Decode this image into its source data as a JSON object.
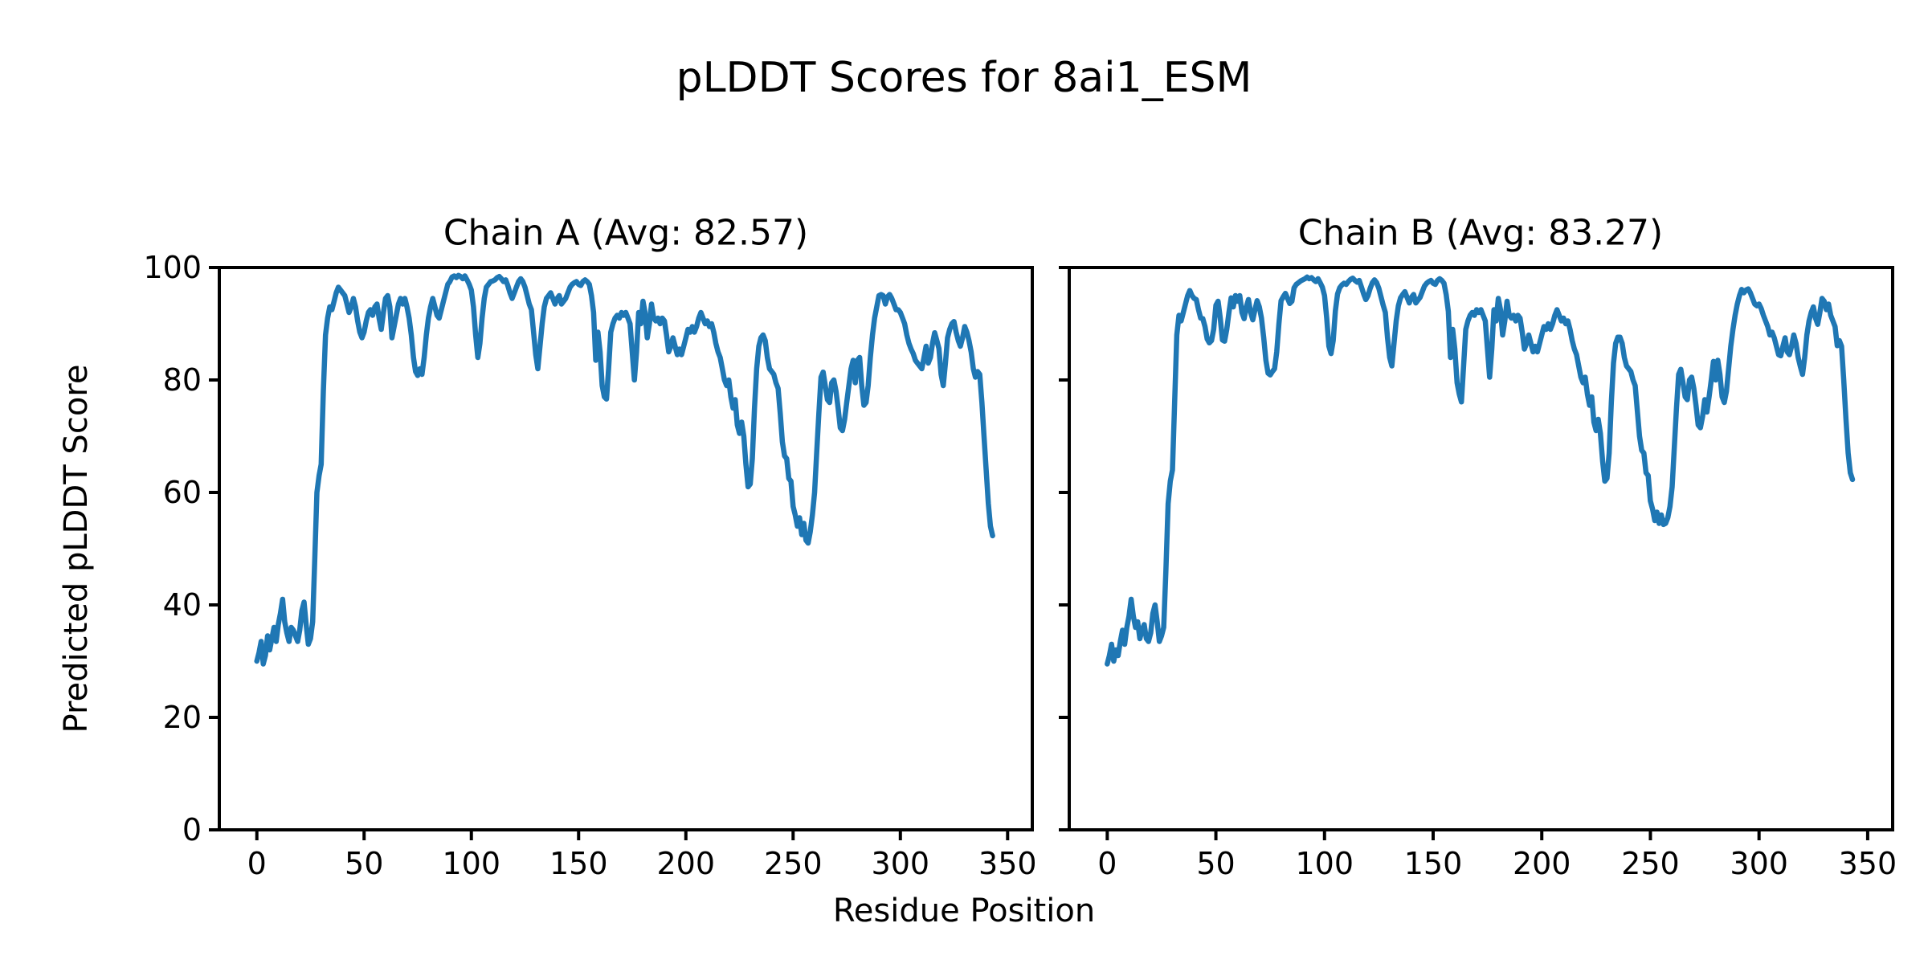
{
  "figure": {
    "title": "pLDDT Scores for 8ai1_ESM",
    "xlabel": "Residue Position",
    "ylabel": "Predicted pLDDT Score",
    "background_color": "#ffffff",
    "text_color": "#000000",
    "line_color": "#1f77b4"
  },
  "chart_data": [
    {
      "type": "line",
      "title": "Chain A (Avg: 82.57)",
      "series_name": "Chain A pLDDT",
      "average": 82.57,
      "xlabel": "Residue Position",
      "ylabel": "Predicted pLDDT Score",
      "xlim": [
        -17.5,
        361.5
      ],
      "ylim": [
        0,
        100
      ],
      "x_ticks": [
        0,
        50,
        100,
        150,
        200,
        250,
        300,
        350
      ],
      "y_ticks": [
        0,
        20,
        40,
        60,
        80,
        100
      ],
      "grid": false,
      "x_start": 0,
      "values": [
        30,
        31.5,
        33.5,
        29.5,
        31,
        34.5,
        32,
        34,
        36,
        33.5,
        36.5,
        38.5,
        41,
        37,
        35,
        33.5,
        36,
        35.5,
        34.5,
        33.5,
        35.5,
        39,
        40.5,
        36.5,
        33,
        34,
        37,
        48,
        60,
        63,
        65,
        78,
        88,
        91,
        93,
        92.5,
        94,
        95.5,
        96.5,
        96,
        95.5,
        95,
        93.5,
        92,
        93,
        94.5,
        93,
        90.5,
        88.5,
        87.5,
        88.5,
        90.5,
        92,
        92.5,
        91.5,
        93,
        93.5,
        91,
        89,
        92,
        94.5,
        95,
        93,
        87.5,
        89.5,
        91.5,
        93.5,
        94.5,
        93.5,
        94.5,
        93,
        91,
        88,
        84,
        81.5,
        80.8,
        82,
        81,
        84,
        88,
        91,
        93,
        94.5,
        93,
        91.5,
        91,
        92.5,
        94,
        95.5,
        97,
        97.5,
        98.3,
        98.5,
        98.2,
        98.6,
        98.4,
        98,
        98.5,
        97.8,
        97,
        96,
        93,
        88,
        84,
        86.5,
        91,
        94.5,
        96.5,
        97,
        97.5,
        97.6,
        97.8,
        98.2,
        98.4,
        98,
        97.5,
        97.8,
        96.8,
        95.5,
        94.5,
        95.5,
        96.5,
        97.5,
        98,
        97.5,
        96.5,
        95,
        93.5,
        92.5,
        88.5,
        84.5,
        82,
        86,
        90,
        93,
        94.5,
        95,
        95.5,
        94.5,
        93.5,
        94.5,
        95,
        93.5,
        94,
        94.5,
        95.5,
        96.5,
        97,
        97.3,
        97.5,
        97,
        96.8,
        97.5,
        97.8,
        97.5,
        97,
        95,
        92,
        83.5,
        88.5,
        85,
        79,
        77,
        76.6,
        82,
        88.5,
        90,
        91,
        91.5,
        91,
        92,
        91.5,
        92,
        91,
        90,
        85,
        80,
        85,
        92,
        90,
        94,
        92,
        87.5,
        90,
        93.5,
        91,
        90.5,
        91,
        90,
        91,
        90.5,
        88,
        85,
        86,
        87.5,
        86,
        84.5,
        85.5,
        84.5,
        86,
        87.5,
        89,
        88.5,
        89.5,
        88.5,
        89.5,
        91,
        92,
        91,
        90,
        90.5,
        89.5,
        90,
        88.5,
        86.5,
        85,
        84,
        82,
        80,
        79,
        80,
        77,
        75,
        76.5,
        72,
        70.5,
        72.5,
        70,
        65,
        61,
        61.5,
        66,
        75,
        82,
        86,
        87.5,
        88,
        87,
        84,
        82,
        81.5,
        81,
        79.5,
        78.5,
        74,
        69,
        66.5,
        66,
        62.5,
        62,
        57.5,
        56,
        54,
        55.5,
        52.5,
        54.5,
        51.5,
        51,
        53,
        56,
        60,
        67,
        74,
        80.5,
        81.4,
        79,
        76.5,
        76,
        79.5,
        80,
        78,
        75,
        71.5,
        71,
        73,
        76,
        79,
        82,
        83.5,
        79.5,
        83.5,
        84,
        79,
        75.5,
        76,
        79,
        84,
        88,
        91,
        93,
        95,
        95.2,
        95,
        93.5,
        94.8,
        95.2,
        94.5,
        93.5,
        92.5,
        92.5,
        92,
        91,
        90,
        88,
        86.5,
        85.5,
        84.7,
        83.5,
        83,
        82.5,
        82,
        84,
        86,
        83,
        84,
        86.5,
        88.4,
        87,
        85.6,
        81,
        79,
        83,
        87.5,
        89,
        90,
        90.4,
        88.5,
        87,
        86,
        87.5,
        89.5,
        88.5,
        87,
        85,
        82,
        80.5,
        81.5,
        81,
        76,
        70,
        64,
        58,
        54,
        52.3
      ]
    },
    {
      "type": "line",
      "title": "Chain B (Avg: 83.27)",
      "series_name": "Chain B pLDDT",
      "average": 83.27,
      "xlabel": "Residue Position",
      "ylabel": "Predicted pLDDT Score",
      "xlim": [
        -17.5,
        361.5
      ],
      "ylim": [
        0,
        100
      ],
      "x_ticks": [
        0,
        50,
        100,
        150,
        200,
        250,
        300,
        350
      ],
      "y_ticks": [
        0,
        20,
        40,
        60,
        80,
        100
      ],
      "grid": false,
      "x_start": 0,
      "values": [
        29.5,
        31,
        33,
        30,
        32,
        31,
        33.5,
        35.5,
        33,
        36,
        38,
        41,
        38,
        36,
        37,
        34,
        35.5,
        36.5,
        34,
        33.5,
        35,
        38.5,
        40,
        37,
        33.5,
        34.5,
        36,
        46,
        58,
        62,
        64,
        76,
        88,
        91.5,
        90.5,
        92,
        93.5,
        95,
        95.9,
        95,
        94.5,
        94.3,
        92.5,
        91,
        90.9,
        89.5,
        87.3,
        86.6,
        87,
        89,
        93.3,
        94,
        91,
        87.1,
        86.9,
        89,
        92,
        94.6,
        93,
        95,
        94,
        95,
        92,
        90.9,
        93,
        94.3,
        92,
        90.7,
        92.5,
        94.1,
        93,
        91,
        87.5,
        83.5,
        81.2,
        80.9,
        81.5,
        82,
        85,
        90,
        94.1,
        94.8,
        95.4,
        94.5,
        93.6,
        94,
        96.4,
        97,
        97.3,
        97.6,
        97.8,
        98,
        98.3,
        98,
        98.2,
        97.8,
        97.5,
        98,
        97.3,
        96.5,
        95,
        91,
        86,
        84.7,
        87,
        92.3,
        95.3,
        96.4,
        96.9,
        97.2,
        97,
        97.5,
        97.9,
        98.1,
        97.7,
        97.4,
        97.7,
        96.5,
        95.3,
        94.3,
        95,
        96.3,
        97.3,
        97.8,
        97.3,
        96.3,
        94.8,
        93.3,
        92,
        87.5,
        84,
        82.5,
        86.5,
        90.5,
        93.2,
        94.6,
        95.2,
        95.7,
        94.7,
        93.7,
        94.7,
        95.2,
        93.7,
        94.2,
        94.7,
        95.7,
        96.7,
        97.2,
        97.5,
        97.7,
        97.2,
        97,
        97.7,
        98,
        97.7,
        97.2,
        95.2,
        92.2,
        84,
        89,
        85.5,
        79.5,
        77.5,
        76.1,
        82.5,
        89,
        90.5,
        91.5,
        92,
        91.5,
        92.5,
        92,
        92.5,
        91.5,
        90.5,
        85.5,
        80.5,
        85.5,
        92.5,
        90.5,
        94.5,
        92.5,
        88,
        90.5,
        94,
        91.5,
        91,
        91.5,
        90.5,
        91.5,
        91,
        88.5,
        85.5,
        86.5,
        88,
        86.5,
        85,
        86,
        85,
        86.5,
        88,
        89.5,
        89,
        90,
        89,
        90,
        91.5,
        92.5,
        91.5,
        90.5,
        91,
        90,
        90.5,
        89,
        87,
        85.5,
        84.5,
        82.5,
        80.5,
        79.5,
        80.5,
        77.5,
        75.5,
        77,
        72.5,
        71,
        73,
        70.5,
        65.5,
        62,
        62.5,
        67,
        76,
        83,
        86.5,
        87.6,
        87.6,
        86.5,
        84,
        82.5,
        82,
        81.5,
        80,
        79,
        74.5,
        70,
        67.5,
        67,
        63.5,
        63,
        58.5,
        57,
        55,
        56.5,
        54.5,
        56,
        54.3,
        54.5,
        55.5,
        57.5,
        61,
        68,
        75,
        81,
        81.9,
        79.5,
        77,
        76.5,
        80,
        80.5,
        78.5,
        75.5,
        72,
        71.5,
        73.5,
        76.5,
        74.3,
        77,
        80,
        83.3,
        80,
        83.5,
        81,
        77,
        76,
        78,
        82,
        86,
        89,
        91.5,
        93.5,
        95,
        96.1,
        95.5,
        96,
        96.2,
        95.5,
        94.5,
        93.5,
        93.2,
        93.5,
        92.7,
        91.5,
        90.5,
        89.5,
        88,
        88.5,
        87.5,
        86,
        84.5,
        84.3,
        86,
        87.5,
        85,
        84.5,
        86,
        88,
        86.5,
        84,
        82.4,
        81,
        84,
        88,
        90.5,
        92,
        93,
        91,
        89.9,
        92,
        94.5,
        94,
        92.5,
        93.5,
        91.5,
        90.5,
        89.5,
        86.1,
        87,
        86,
        80,
        73,
        67,
        63.5,
        62.3
      ]
    }
  ],
  "layout_note": "two side-by-side line subplots sharing y axis, y tick labels only on left subplot"
}
